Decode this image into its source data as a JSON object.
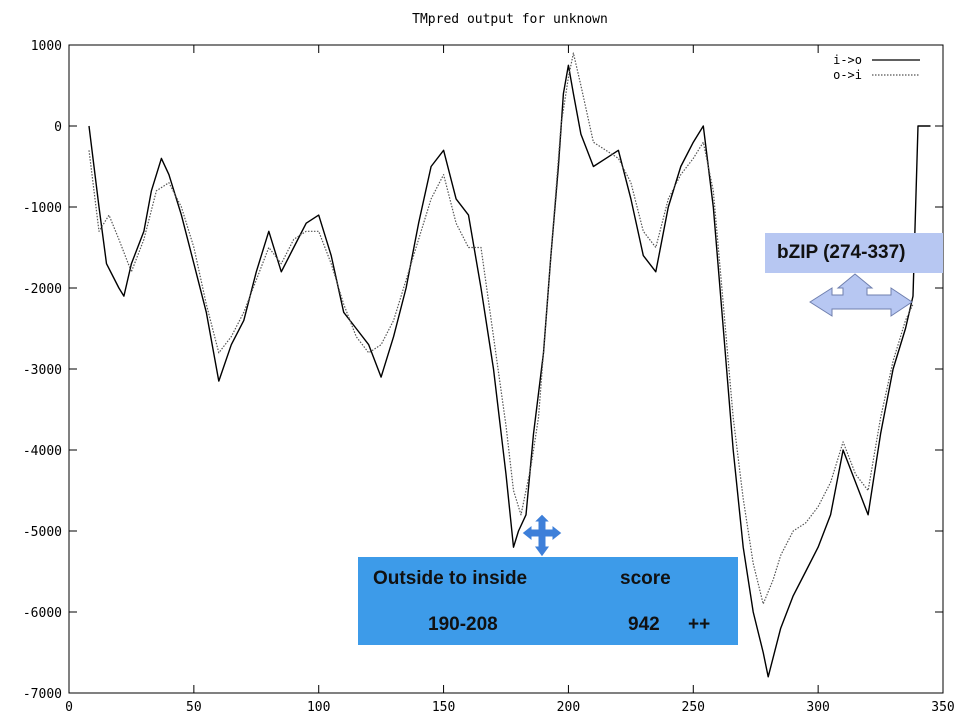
{
  "chart_data": {
    "type": "line",
    "title": "TMpred output for unknown",
    "xlabel": "",
    "ylabel": "",
    "xlim": [
      0,
      350
    ],
    "ylim": [
      -7000,
      1000
    ],
    "xticks": [
      "0",
      "50",
      "100",
      "150",
      "200",
      "250",
      "300",
      "350"
    ],
    "yticks": [
      "1000",
      "0",
      "-1000",
      "-2000",
      "-3000",
      "-4000",
      "-5000",
      "-6000",
      "-7000"
    ],
    "legend_position": "top-right",
    "series": [
      {
        "name": "i->o",
        "style": "solid",
        "color": "#000000",
        "points": [
          [
            8,
            0
          ],
          [
            10,
            -500
          ],
          [
            12,
            -1000
          ],
          [
            15,
            -1700
          ],
          [
            20,
            -2000
          ],
          [
            22,
            -2100
          ],
          [
            25,
            -1700
          ],
          [
            30,
            -1300
          ],
          [
            33,
            -800
          ],
          [
            37,
            -400
          ],
          [
            40,
            -600
          ],
          [
            45,
            -1100
          ],
          [
            50,
            -1700
          ],
          [
            55,
            -2300
          ],
          [
            60,
            -3150
          ],
          [
            65,
            -2700
          ],
          [
            70,
            -2400
          ],
          [
            75,
            -1800
          ],
          [
            80,
            -1300
          ],
          [
            85,
            -1800
          ],
          [
            90,
            -1500
          ],
          [
            95,
            -1200
          ],
          [
            100,
            -1100
          ],
          [
            105,
            -1600
          ],
          [
            110,
            -2300
          ],
          [
            115,
            -2500
          ],
          [
            120,
            -2700
          ],
          [
            125,
            -3100
          ],
          [
            130,
            -2600
          ],
          [
            135,
            -2000
          ],
          [
            140,
            -1200
          ],
          [
            145,
            -500
          ],
          [
            150,
            -300
          ],
          [
            155,
            -900
          ],
          [
            160,
            -1100
          ],
          [
            165,
            -2000
          ],
          [
            170,
            -3000
          ],
          [
            175,
            -4300
          ],
          [
            178,
            -5200
          ],
          [
            180,
            -5000
          ],
          [
            183,
            -4800
          ],
          [
            186,
            -3800
          ],
          [
            190,
            -2800
          ],
          [
            193,
            -1600
          ],
          [
            196,
            -500
          ],
          [
            198,
            400
          ],
          [
            200,
            750
          ],
          [
            202,
            400
          ],
          [
            205,
            -100
          ],
          [
            210,
            -500
          ],
          [
            215,
            -400
          ],
          [
            220,
            -300
          ],
          [
            225,
            -900
          ],
          [
            230,
            -1600
          ],
          [
            235,
            -1800
          ],
          [
            240,
            -1000
          ],
          [
            245,
            -500
          ],
          [
            250,
            -200
          ],
          [
            254,
            0
          ],
          [
            258,
            -1000
          ],
          [
            262,
            -2500
          ],
          [
            266,
            -4000
          ],
          [
            270,
            -5200
          ],
          [
            274,
            -6000
          ],
          [
            278,
            -6500
          ],
          [
            280,
            -6800
          ],
          [
            285,
            -6200
          ],
          [
            290,
            -5800
          ],
          [
            295,
            -5500
          ],
          [
            300,
            -5200
          ],
          [
            305,
            -4800
          ],
          [
            310,
            -4000
          ],
          [
            315,
            -4400
          ],
          [
            320,
            -4800
          ],
          [
            325,
            -3800
          ],
          [
            330,
            -3000
          ],
          [
            335,
            -2500
          ],
          [
            338,
            -2100
          ],
          [
            340,
            0
          ],
          [
            345,
            0
          ]
        ]
      },
      {
        "name": "o->i",
        "style": "dotted",
        "color": "#555555",
        "points": [
          [
            8,
            -300
          ],
          [
            10,
            -800
          ],
          [
            12,
            -1300
          ],
          [
            16,
            -1100
          ],
          [
            20,
            -1400
          ],
          [
            25,
            -1800
          ],
          [
            30,
            -1400
          ],
          [
            35,
            -800
          ],
          [
            40,
            -700
          ],
          [
            45,
            -1000
          ],
          [
            50,
            -1500
          ],
          [
            55,
            -2200
          ],
          [
            60,
            -2800
          ],
          [
            65,
            -2600
          ],
          [
            70,
            -2300
          ],
          [
            75,
            -1900
          ],
          [
            80,
            -1500
          ],
          [
            85,
            -1700
          ],
          [
            90,
            -1400
          ],
          [
            95,
            -1300
          ],
          [
            100,
            -1300
          ],
          [
            105,
            -1700
          ],
          [
            110,
            -2200
          ],
          [
            115,
            -2600
          ],
          [
            120,
            -2800
          ],
          [
            125,
            -2700
          ],
          [
            130,
            -2400
          ],
          [
            135,
            -1900
          ],
          [
            140,
            -1400
          ],
          [
            145,
            -900
          ],
          [
            150,
            -600
          ],
          [
            155,
            -1200
          ],
          [
            160,
            -1500
          ],
          [
            165,
            -1500
          ],
          [
            170,
            -2600
          ],
          [
            175,
            -3700
          ],
          [
            178,
            -4500
          ],
          [
            181,
            -4800
          ],
          [
            185,
            -4200
          ],
          [
            188,
            -3600
          ],
          [
            191,
            -2400
          ],
          [
            194,
            -1200
          ],
          [
            197,
            0
          ],
          [
            200,
            600
          ],
          [
            202,
            900
          ],
          [
            205,
            500
          ],
          [
            210,
            -200
          ],
          [
            215,
            -300
          ],
          [
            220,
            -400
          ],
          [
            225,
            -700
          ],
          [
            230,
            -1300
          ],
          [
            235,
            -1500
          ],
          [
            240,
            -900
          ],
          [
            245,
            -600
          ],
          [
            250,
            -400
          ],
          [
            254,
            -200
          ],
          [
            258,
            -800
          ],
          [
            262,
            -2200
          ],
          [
            266,
            -3600
          ],
          [
            270,
            -4600
          ],
          [
            274,
            -5400
          ],
          [
            278,
            -5900
          ],
          [
            282,
            -5600
          ],
          [
            285,
            -5300
          ],
          [
            290,
            -5000
          ],
          [
            295,
            -4900
          ],
          [
            300,
            -4700
          ],
          [
            305,
            -4400
          ],
          [
            310,
            -3900
          ],
          [
            315,
            -4300
          ],
          [
            320,
            -4500
          ],
          [
            325,
            -3600
          ],
          [
            330,
            -2900
          ],
          [
            335,
            -2400
          ],
          [
            338,
            -2200
          ]
        ]
      }
    ],
    "annotations": [
      {
        "kind": "box",
        "fill": "#3d9be9",
        "lines": [
          "Outside to inside",
          "190-208"
        ],
        "score_label": "score",
        "score_value": "942",
        "score_mark": "++",
        "arrow_color": "#3d7fd9"
      },
      {
        "kind": "box",
        "fill": "#b7c7f2",
        "lines": [
          "bZIP (274-337)"
        ],
        "arrow_color": "#b7c7f2"
      }
    ]
  }
}
